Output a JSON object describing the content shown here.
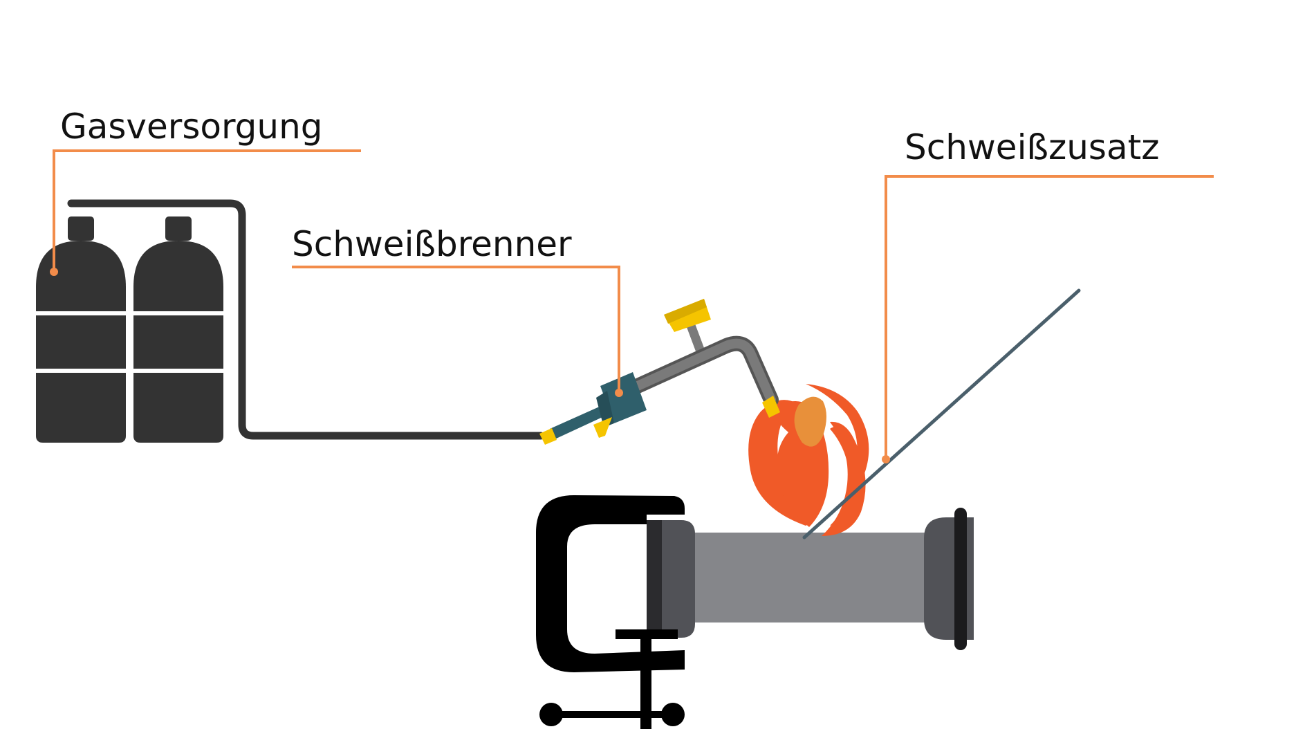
{
  "labels": {
    "gas_supply": "Gasversorgung",
    "torch": "Schweißbrenner",
    "filler": "Schweißzusatz"
  },
  "colors": {
    "leader_line": "#F28C4A",
    "cylinder": "#333333",
    "hose": "#333333",
    "torch_pipe": "#7a7a7a",
    "torch_handle": "#2f5f6b",
    "valve_knob": "#f5c400",
    "flame_outer": "#f05a28",
    "flame_inner": "#e8903a",
    "filler_rod": "#4a5f6b",
    "workpiece_pipe": "#85868a",
    "pipe_flange": "#515257",
    "clamp": "#000000"
  },
  "icons": {
    "gas_cylinders": "gas-cylinder-icon",
    "torch": "welding-torch-icon",
    "flame": "flame-icon",
    "filler_rod": "filler-rod-icon",
    "workpiece": "pipe-icon",
    "clamp": "c-clamp-icon"
  }
}
